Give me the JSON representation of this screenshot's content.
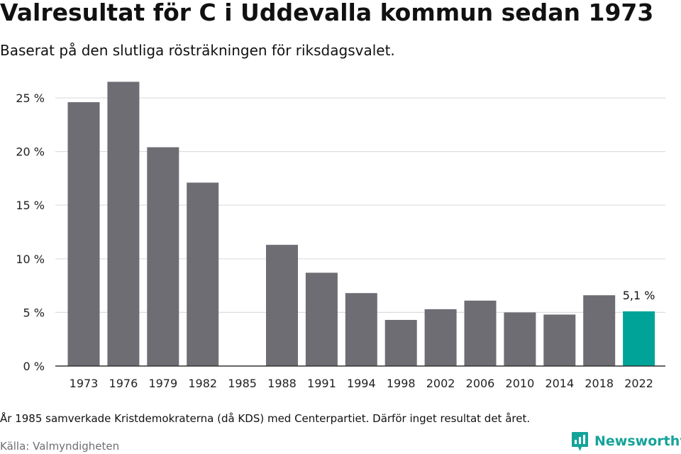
{
  "title": "Valresultat för C i Uddevalla kommun sedan 1973",
  "subtitle": "Baserat på den slutliga rösträkningen för riksdagsvalet.",
  "footnote": "År 1985 samverkade Kristdemokraterna (då KDS) med Centerpartiet. Därför inget resultat det året.",
  "source": "Källa: Valmyndigheten",
  "brand": {
    "name": "Newsworthy",
    "color": "#14a39a",
    "icon": "newsworthy-logo-icon"
  },
  "colors": {
    "bar": "#6e6d73",
    "highlight": "#00a398",
    "grid": "#dddddd",
    "axis": "#333333"
  },
  "chart_data": {
    "type": "bar",
    "categories": [
      "1973",
      "1976",
      "1979",
      "1982",
      "1985",
      "1988",
      "1991",
      "1994",
      "1998",
      "2002",
      "2006",
      "2010",
      "2014",
      "2018",
      "2022"
    ],
    "values": [
      24.6,
      26.5,
      20.4,
      17.1,
      null,
      11.3,
      8.7,
      6.8,
      4.3,
      5.3,
      6.1,
      5.0,
      4.8,
      6.6,
      5.1
    ],
    "ylim": [
      0,
      27
    ],
    "yticks": [
      0,
      5,
      10,
      15,
      20,
      25
    ],
    "ytick_labels": [
      "0 %",
      "5 %",
      "10 %",
      "15 %",
      "20 %",
      "25 %"
    ],
    "highlight_index": 14,
    "highlight_label": "5,1 %",
    "grid": true
  }
}
